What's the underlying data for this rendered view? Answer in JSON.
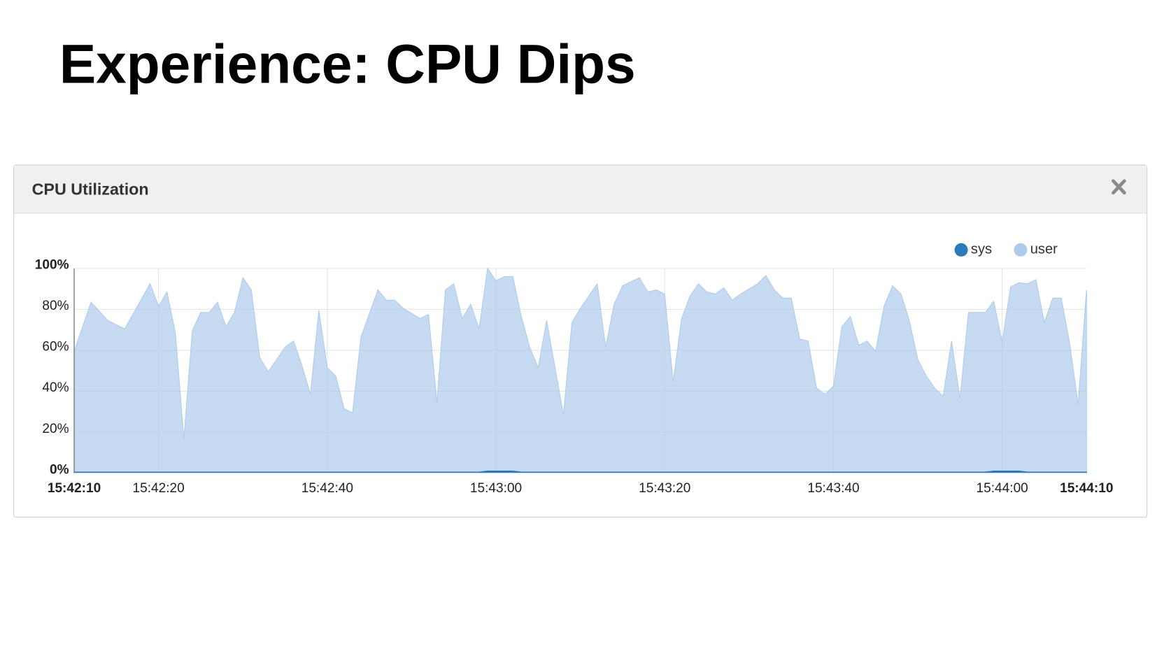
{
  "slide_title": "Experience: CPU Dips",
  "chart_data": {
    "type": "area",
    "title": "CPU Utilization",
    "stacked": true,
    "legend": "top-right",
    "grid": true,
    "x": [
      "15:42:10",
      "15:42:12",
      "15:42:14",
      "15:42:16",
      "15:42:19",
      "15:42:20",
      "15:42:21",
      "15:42:22",
      "15:42:23",
      "15:42:24",
      "15:42:25",
      "15:42:26",
      "15:42:27",
      "15:42:28",
      "15:42:29",
      "15:42:30",
      "15:42:31",
      "15:42:32",
      "15:42:33",
      "15:42:35",
      "15:42:36",
      "15:42:37",
      "15:42:38",
      "15:42:39",
      "15:42:40",
      "15:42:41",
      "15:42:42",
      "15:42:43",
      "15:42:44",
      "15:42:46",
      "15:42:47",
      "15:42:48",
      "15:42:49",
      "15:42:51",
      "15:42:52",
      "15:42:53",
      "15:42:54",
      "15:42:55",
      "15:42:56",
      "15:42:57",
      "15:42:58",
      "15:42:59",
      "15:43:00",
      "15:43:01",
      "15:43:02",
      "15:43:03",
      "15:43:04",
      "15:43:05",
      "15:43:06",
      "15:43:08",
      "15:43:09",
      "15:43:10",
      "15:43:11",
      "15:43:12",
      "15:43:13",
      "15:43:14",
      "15:43:15",
      "15:43:17",
      "15:43:18",
      "15:43:19",
      "15:43:20",
      "15:43:21",
      "15:43:22",
      "15:43:23",
      "15:43:24",
      "15:43:25",
      "15:43:26",
      "15:43:27",
      "15:43:28",
      "15:43:29",
      "15:43:31",
      "15:43:32",
      "15:43:33",
      "15:43:34",
      "15:43:35",
      "15:43:36",
      "15:43:37",
      "15:43:38",
      "15:43:39",
      "15:43:40",
      "15:43:41",
      "15:43:42",
      "15:43:43",
      "15:43:44",
      "15:43:45",
      "15:43:46",
      "15:43:47",
      "15:43:48",
      "15:43:49",
      "15:43:50",
      "15:43:51",
      "15:43:52",
      "15:43:53",
      "15:43:54",
      "15:43:55",
      "15:43:56",
      "15:43:58",
      "15:43:59",
      "15:44:00",
      "15:44:01",
      "15:44:02",
      "15:44:03",
      "15:44:04",
      "15:44:05",
      "15:44:06",
      "15:44:07",
      "15:44:08",
      "15:44:09",
      "15:44:10"
    ],
    "series": [
      {
        "name": "sys",
        "color": "#2b7bba",
        "values": [
          0.5,
          0.5,
          0.5,
          0.5,
          0.5,
          0.5,
          0.5,
          0.5,
          0.5,
          0.5,
          0.5,
          0.5,
          0.5,
          0.5,
          0.5,
          0.5,
          0.5,
          0.5,
          0.5,
          0.5,
          0.5,
          0.5,
          0.5,
          0.5,
          0.5,
          0.5,
          0.5,
          0.5,
          0.5,
          0.5,
          0.5,
          0.5,
          0.5,
          0.5,
          0.5,
          0.5,
          0.5,
          0.5,
          0.5,
          0.5,
          0.5,
          1,
          1,
          1,
          1,
          0.5,
          0.5,
          0.5,
          0.5,
          0.5,
          0.5,
          0.5,
          0.5,
          0.5,
          0.5,
          0.5,
          0.5,
          0.5,
          0.5,
          0.5,
          0.5,
          0.5,
          0.5,
          0.5,
          0.5,
          0.5,
          0.5,
          0.5,
          0.5,
          0.5,
          0.5,
          0.5,
          0.5,
          0.5,
          0.5,
          0.5,
          0.5,
          0.5,
          0.5,
          0.5,
          0.5,
          0.5,
          0.5,
          0.5,
          0.5,
          0.5,
          0.5,
          0.5,
          0.5,
          0.5,
          0.5,
          0.5,
          0.5,
          0.5,
          0.5,
          0.5,
          0.5,
          1,
          1,
          1,
          1,
          0.5,
          0.5,
          0.5,
          0.5,
          0.5,
          0.5,
          0.5,
          0.5
        ]
      },
      {
        "name": "user",
        "color": "#aecbeb",
        "values": [
          59,
          83,
          74,
          70,
          92,
          81,
          88,
          68,
          16,
          69,
          78,
          78,
          83,
          71,
          78,
          95,
          89,
          56,
          49,
          61,
          64,
          52,
          38,
          79,
          51,
          47,
          31,
          29,
          66,
          89,
          84,
          84,
          80,
          75,
          77,
          34,
          89,
          92,
          75,
          82,
          70,
          99,
          93,
          95,
          95,
          76,
          61,
          51,
          74,
          28,
          73,
          80,
          86,
          92,
          61,
          82,
          91,
          95,
          88,
          89,
          87,
          44,
          75,
          86,
          92,
          88,
          87,
          90,
          84,
          87,
          92,
          96,
          89,
          85,
          85,
          65,
          64,
          41,
          38,
          42,
          71,
          76,
          62,
          64,
          59,
          81,
          91,
          87,
          74,
          55,
          47,
          41,
          37,
          64,
          36,
          78,
          78,
          83,
          63,
          90,
          92,
          92,
          94,
          73,
          85,
          85,
          63,
          33,
          89
        ]
      }
    ],
    "xlim": [
      "15:42:10",
      "15:44:10"
    ],
    "xticks": [
      "15:42:10",
      "15:42:20",
      "15:42:40",
      "15:43:00",
      "15:43:20",
      "15:43:40",
      "15:44:00",
      "15:44:10"
    ],
    "ylim": [
      0,
      100
    ],
    "yticks": [
      {
        "value": 0,
        "label": "0%"
      },
      {
        "value": 20,
        "label": "20%"
      },
      {
        "value": 40,
        "label": "40%"
      },
      {
        "value": 60,
        "label": "60%"
      },
      {
        "value": 80,
        "label": "80%"
      },
      {
        "value": 100,
        "label": "100%"
      }
    ]
  }
}
